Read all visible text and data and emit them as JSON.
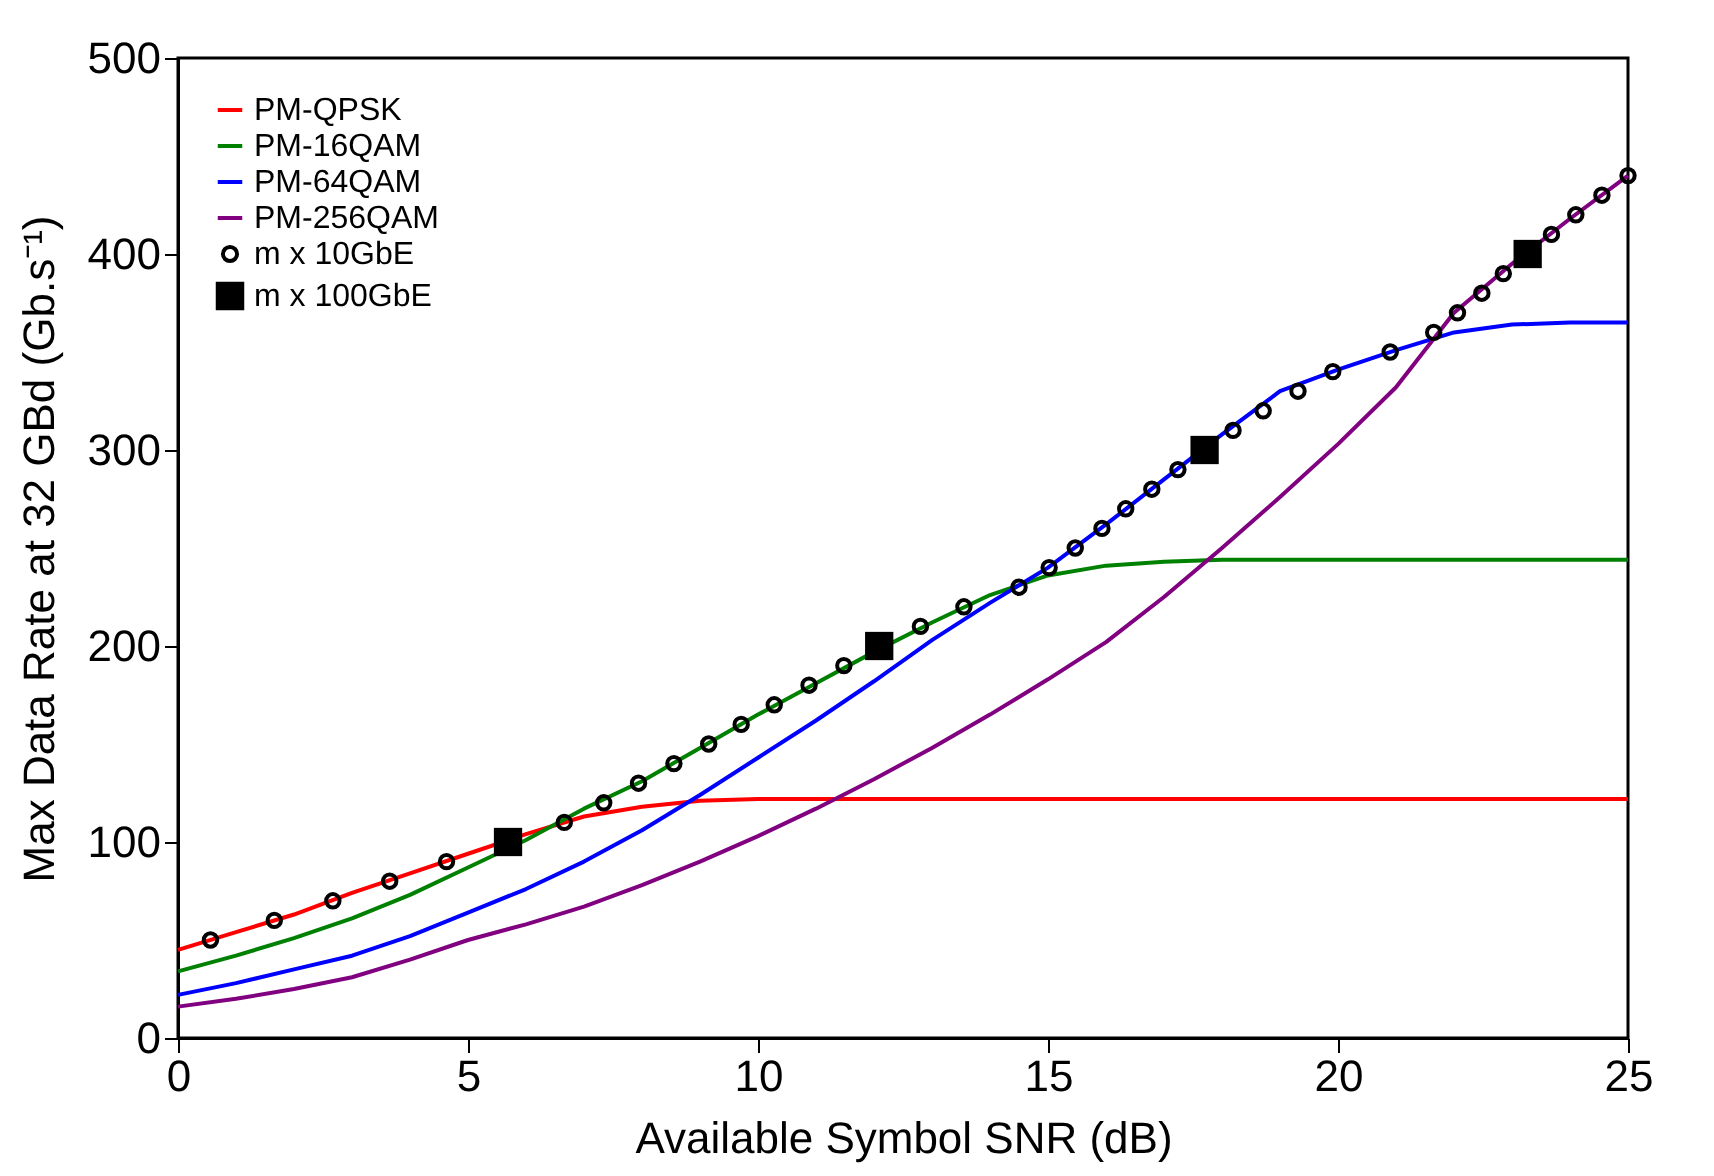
{
  "chart_data": {
    "type": "line",
    "xlabel": "Available Symbol SNR (dB)",
    "ylabel": "Max Data Rate at 32 GBd (Gb.s⁻¹)",
    "x": [
      0,
      1,
      2,
      3,
      4,
      5,
      6,
      7,
      8,
      9,
      10,
      11,
      12,
      13,
      14,
      15,
      16,
      17,
      18,
      19,
      20,
      21,
      22,
      23,
      24,
      25
    ],
    "series": [
      {
        "name": "PM-QPSK",
        "color": "#ff0000",
        "values": [
          45,
          54,
          63,
          74,
          84,
          94,
          104,
          113,
          118,
          121,
          122,
          122,
          122,
          122,
          122,
          122,
          122,
          122,
          122,
          122,
          122,
          122,
          122,
          122,
          122,
          122
        ]
      },
      {
        "name": "PM-16QAM",
        "color": "#008000",
        "values": [
          34,
          42,
          51,
          61,
          73,
          87,
          101,
          117,
          131,
          148,
          165,
          181,
          197,
          212,
          226,
          236,
          241,
          243,
          244,
          244,
          244,
          244,
          244,
          244,
          244,
          244
        ]
      },
      {
        "name": "PM-64QAM",
        "color": "#0000ff",
        "values": [
          22,
          28,
          35,
          42,
          52,
          64,
          76,
          90,
          106,
          124,
          143,
          162,
          182,
          203,
          222,
          240,
          262,
          285,
          308,
          330,
          341,
          351,
          360,
          364,
          365,
          365
        ]
      },
      {
        "name": "PM-256QAM",
        "color": "#800080",
        "values": [
          16,
          20,
          25,
          31,
          40,
          50,
          58,
          67,
          78,
          90,
          103,
          117,
          132,
          148,
          165,
          183,
          202,
          225,
          250,
          276,
          303,
          332,
          370,
          395,
          418,
          440
        ]
      },
      {
        "name": "m x 10GbE",
        "type": "scatter",
        "marker": "circle",
        "color": "#000000",
        "x": [
          0.56,
          1.66,
          2.67,
          3.65,
          4.63,
          6.66,
          7.34,
          7.94,
          8.55,
          9.15,
          9.71,
          10.28,
          10.88,
          11.48,
          12.8,
          13.55,
          14.5,
          15.02,
          15.47,
          15.93,
          16.34,
          16.79,
          17.24,
          18.19,
          18.71,
          19.31,
          19.91,
          20.9,
          21.65,
          22.06,
          22.48,
          22.85,
          23.68,
          24.1,
          24.55,
          25.0
        ],
        "values": [
          50,
          60,
          70,
          80,
          90,
          110,
          120,
          130,
          140,
          150,
          160,
          170,
          180,
          190,
          210,
          220,
          230,
          240,
          250,
          260,
          270,
          280,
          290,
          310,
          320,
          330,
          340,
          350,
          360,
          370,
          380,
          390,
          410,
          420,
          430,
          440
        ]
      },
      {
        "name": "m x 100GbE",
        "type": "scatter",
        "marker": "square",
        "color": "#000000",
        "x": [
          5.69,
          12.09,
          17.7,
          23.27
        ],
        "values": [
          100,
          200,
          300,
          400
        ]
      }
    ],
    "xlim": [
      0,
      25
    ],
    "ylim": [
      0,
      500
    ],
    "xticks": [
      0,
      5,
      10,
      15,
      20,
      25
    ],
    "yticks": [
      0,
      100,
      200,
      300,
      400,
      500
    ],
    "legend": "top left"
  }
}
